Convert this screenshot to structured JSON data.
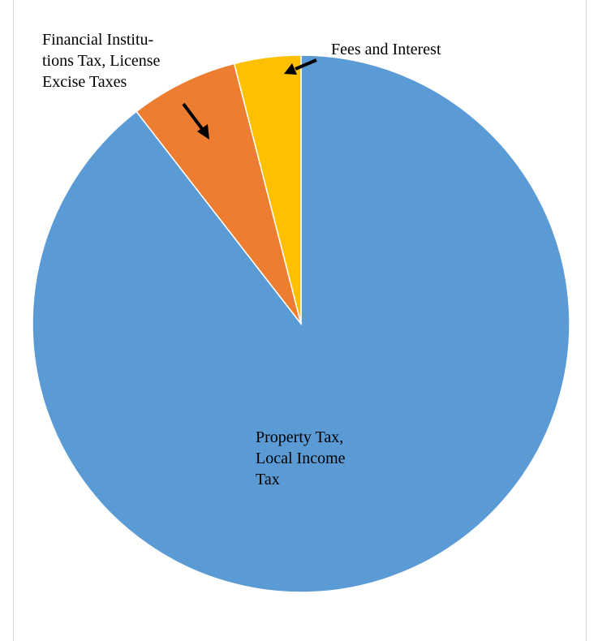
{
  "chart_data": {
    "type": "pie",
    "categories": [
      "Property Tax,\nLocal Income\nTax",
      "Financial Institu-\ntions Tax, License\nExcise Taxes",
      "Fees and Interest"
    ],
    "values": [
      89.5,
      6.5,
      4
    ],
    "colors": [
      "#5b9bd5",
      "#ed7d31",
      "#ffc000"
    ]
  }
}
